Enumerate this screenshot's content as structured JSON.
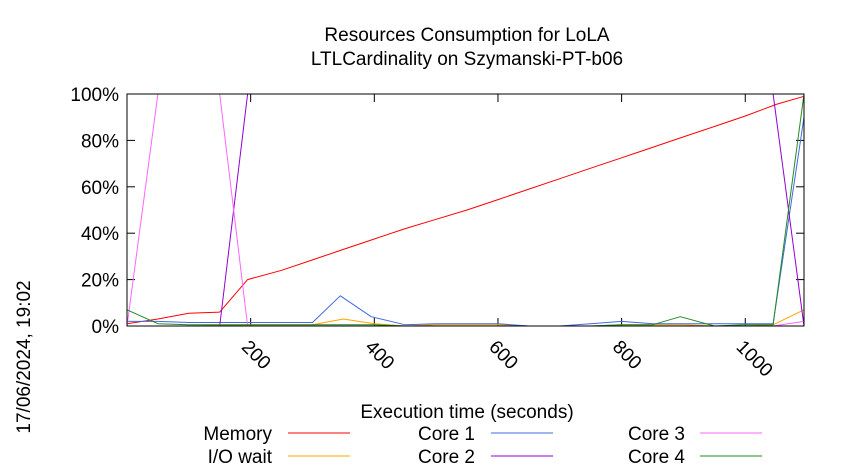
{
  "timestamp": "17/06/2024, 19:02",
  "chart_data": {
    "type": "line",
    "title": "Resources Consumption for LoLA",
    "subtitle": "LTLCardinality on Szymanski-PT-b06",
    "xlabel": "Execution time (seconds)",
    "ylabel": "",
    "xlim": [
      0,
      1095
    ],
    "ylim": [
      0,
      100
    ],
    "xticks": [
      {
        "value": 200,
        "label": "200"
      },
      {
        "value": 400,
        "label": "400"
      },
      {
        "value": 600,
        "label": "600"
      },
      {
        "value": 800,
        "label": "800"
      },
      {
        "value": 1000,
        "label": "1000"
      }
    ],
    "yticks": [
      {
        "value": 0,
        "label": "0%"
      },
      {
        "value": 20,
        "label": "20%"
      },
      {
        "value": 40,
        "label": "40%"
      },
      {
        "value": 60,
        "label": "60%"
      },
      {
        "value": 80,
        "label": "80%"
      },
      {
        "value": 100,
        "label": "100%"
      }
    ],
    "grid": false,
    "legend_position": "bottom",
    "series": [
      {
        "name": "Memory",
        "color": "#ff0000",
        "x": [
          0,
          50,
          100,
          150,
          195,
          250,
          300,
          350,
          400,
          450,
          500,
          550,
          600,
          650,
          700,
          750,
          800,
          850,
          900,
          950,
          1000,
          1050,
          1095
        ],
        "y": [
          1,
          3,
          5.5,
          6,
          20,
          24,
          28.5,
          33,
          37.5,
          42,
          46,
          50,
          54.5,
          59,
          63.5,
          68,
          72.5,
          77,
          81.5,
          86,
          90.5,
          95.5,
          99
        ]
      },
      {
        "name": "I/O wait",
        "color": "#ffa500",
        "x": [
          0,
          100,
          195,
          300,
          350,
          400,
          450,
          500,
          550,
          600,
          650,
          700,
          750,
          800,
          850,
          900,
          950,
          1000,
          1045,
          1095
        ],
        "y": [
          0,
          0,
          0.5,
          0.5,
          3,
          1,
          0,
          0.5,
          0.5,
          0.5,
          0,
          0,
          0,
          0.5,
          0.5,
          0.5,
          0,
          0,
          0.5,
          7
        ]
      },
      {
        "name": "Core 1",
        "color": "#4169e1",
        "x": [
          0,
          50,
          100,
          150,
          200,
          250,
          300,
          345,
          395,
          450,
          500,
          550,
          600,
          650,
          700,
          750,
          800,
          850,
          900,
          950,
          1000,
          1045,
          1095
        ],
        "y": [
          2,
          2,
          1.5,
          1.5,
          1.5,
          1.5,
          1.5,
          13,
          4,
          0.5,
          1,
          1,
          1,
          0,
          0,
          1,
          2,
          1,
          1,
          1,
          1,
          1,
          90
        ]
      },
      {
        "name": "Core 2",
        "color": "#9400d3",
        "x": [
          0,
          100,
          150,
          195,
          250,
          300,
          350,
          400,
          450,
          500,
          550,
          600,
          650,
          700,
          750,
          800,
          850,
          900,
          950,
          1000,
          1045,
          1095
        ],
        "y": [
          0,
          0,
          0,
          100,
          100,
          100,
          100,
          100,
          100,
          100,
          100,
          100,
          100,
          100,
          100,
          100,
          100,
          100,
          100,
          100,
          100,
          0
        ]
      },
      {
        "name": "Core 3",
        "color": "#ff66ff",
        "x": [
          0,
          50,
          100,
          150,
          195,
          250,
          300,
          350,
          400,
          450,
          500,
          550,
          600,
          650,
          700,
          750,
          800,
          850,
          900,
          950,
          1000,
          1045,
          1095
        ],
        "y": [
          0,
          100,
          100,
          100,
          0,
          0,
          0,
          0,
          0,
          0,
          0,
          0,
          0,
          0,
          0,
          0,
          0,
          0,
          0,
          0,
          0,
          0,
          2
        ]
      },
      {
        "name": "Core 4",
        "color": "#228b22",
        "x": [
          0,
          50,
          100,
          150,
          195,
          250,
          300,
          350,
          400,
          450,
          500,
          550,
          600,
          650,
          700,
          750,
          800,
          850,
          895,
          950,
          1000,
          1045,
          1095
        ],
        "y": [
          7,
          1,
          0.5,
          0.5,
          0.5,
          0.5,
          0.5,
          0.5,
          0.5,
          0,
          0,
          0,
          0,
          0,
          0,
          0,
          0.5,
          0.5,
          4,
          0,
          0.5,
          0.5,
          100
        ]
      }
    ]
  }
}
